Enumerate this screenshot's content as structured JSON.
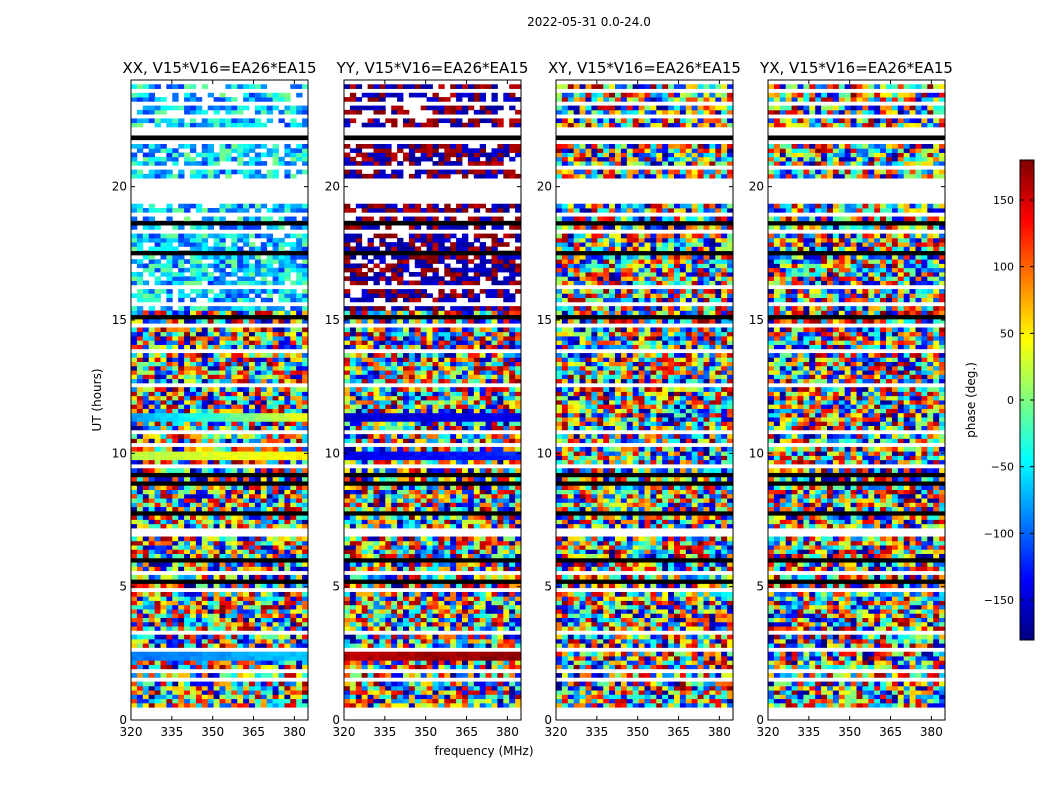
{
  "chart_data": {
    "type": "heatmap",
    "suptitle": "2022-05-31 0.0-24.0",
    "xlabel": "frequency (MHz)",
    "ylabel": "UT (hours)",
    "xlim": [
      320,
      385
    ],
    "ylim": [
      0,
      24
    ],
    "xticks": [
      320,
      335,
      350,
      365,
      380
    ],
    "yticks": [
      0,
      5,
      10,
      15,
      20
    ],
    "panels": [
      {
        "title": "XX, V15*V16=EA26*EA15",
        "coherent_bands": [
          {
            "ut": [
              2.3,
              2.6
            ],
            "phase": [
              -95,
              -65
            ]
          },
          {
            "ut": [
              9.8,
              10.1
            ],
            "phase": [
              20,
              50
            ]
          },
          {
            "ut": [
              11.25,
              11.5
            ],
            "phase": [
              -80,
              40
            ]
          }
        ]
      },
      {
        "title": "YY, V15*V16=EA26*EA15",
        "coherent_bands": [
          {
            "ut": [
              2.3,
              2.6
            ],
            "phase": [
              160,
              175
            ]
          },
          {
            "ut": [
              9.8,
              10.1
            ],
            "phase": [
              -145,
              -120
            ]
          },
          {
            "ut": [
              11.25,
              11.5
            ],
            "phase": [
              -150,
              -140
            ]
          }
        ]
      },
      {
        "title": "XY, V15*V16=EA26*EA15",
        "coherent_bands": []
      },
      {
        "title": "YX, V15*V16=EA26*EA15",
        "coherent_bands": []
      }
    ],
    "colorbar": {
      "label": "phase (deg.)",
      "range": [
        -180,
        180
      ],
      "ticks": [
        -150,
        -100,
        -50,
        0,
        50,
        100,
        150
      ],
      "tick_labels": [
        "−150",
        "−100",
        "−50",
        "0",
        "50",
        "100",
        "150"
      ],
      "colormap": [
        "#00007f",
        "#0000ff",
        "#007fff",
        "#00ffff",
        "#7fff7f",
        "#ffff00",
        "#ff7f00",
        "#ff0000",
        "#7f0000"
      ]
    },
    "colors": {
      "flagged": "#000000",
      "missing": "#ffffff",
      "frame": "#000000"
    }
  }
}
